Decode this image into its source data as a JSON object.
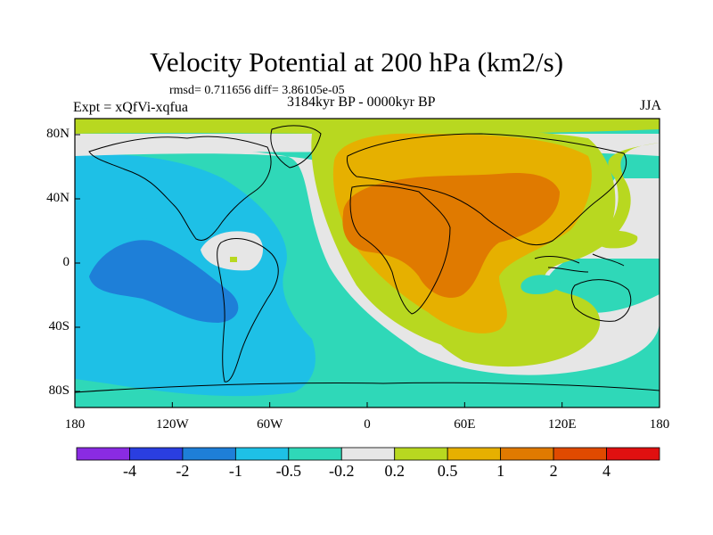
{
  "title": "Velocity Potential at 200 hPa (km2/s)",
  "stats": "rmsd= 0.711656 diff= 3.86105e-05",
  "left_label": "Expt = xQfVi-xqfua",
  "center_label": "3184kyr BP - 0000kyr BP",
  "right_label": "JJA",
  "lat_labels": [
    "80N",
    "40N",
    "0",
    "40S",
    "80S"
  ],
  "lon_labels": [
    "180",
    "120W",
    "60W",
    "0",
    "60E",
    "120E",
    "180"
  ],
  "colorbar": {
    "labels": [
      "-4",
      "-2",
      "-1",
      "-0.5",
      "-0.2",
      "0.2",
      "0.5",
      "1",
      "2",
      "4"
    ],
    "colors": [
      "#8a2be2",
      "#2a3ee0",
      "#1e7fd8",
      "#1ec0e6",
      "#2fd8b8",
      "#e6e6e6",
      "#b8d820",
      "#e6b000",
      "#e07a00",
      "#e04a00",
      "#e01010"
    ]
  },
  "map_colors": {
    "ocean_base": "#2fd8b8",
    "neg_light": "#1ec0e6",
    "neg_mid": "#1e7fd8",
    "neutral": "#e6e6e6",
    "pos_light": "#b8d820",
    "pos_mid": "#e6b000",
    "pos_strong": "#e07a00",
    "coast": "#000000"
  }
}
